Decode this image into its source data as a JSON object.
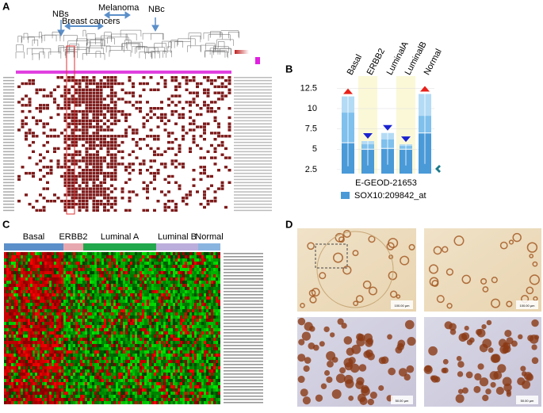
{
  "panels": {
    "a": "A",
    "b": "B",
    "c": "C",
    "d": "D"
  },
  "panel_a": {
    "annotations": [
      "NBs",
      "Breast cancers",
      "Melanoma",
      "NBc"
    ]
  },
  "chart_data": {
    "type": "box",
    "categories": [
      "Basal",
      "ERBB2",
      "LuminalA",
      "LuminalB",
      "Normal"
    ],
    "series": [
      {
        "name": "SOX10:209842_at",
        "color": "#4a9ad8",
        "low": [
          2.9,
          3.0,
          3.1,
          3.0,
          3.2
        ],
        "q1": [
          4.2,
          4.6,
          4.7,
          4.6,
          4.8
        ],
        "median": [
          5.8,
          5.0,
          5.1,
          5.0,
          7.0
        ],
        "q3": [
          9.5,
          5.6,
          6.2,
          5.4,
          9.1
        ],
        "high": [
          11.5,
          6.0,
          7.0,
          5.6,
          11.8
        ]
      }
    ],
    "markers": [
      "up",
      "down",
      "down",
      "down",
      "up"
    ],
    "marker_colors": [
      "#e8201a",
      "#1a22d0",
      "#1a22d0",
      "#1a22d0",
      "#e8201a"
    ],
    "band_colors": [
      null,
      "#fbf8d8",
      null,
      "#fbf8d8",
      null
    ],
    "xlabel": "E-GEOD-21653",
    "ylim": [
      2.0,
      14.0
    ],
    "yticks": [
      2.5,
      5.0,
      7.5,
      10.0,
      12.5
    ],
    "legend": "bottom"
  },
  "panel_c": {
    "groups": [
      {
        "name": "Basal",
        "color": "#5b8fc9"
      },
      {
        "name": "ERBB2",
        "color": "#e8a8b0"
      },
      {
        "name": "Luminal A",
        "color": "#22a84c"
      },
      {
        "name": "Luminal B",
        "color": "#bcaedc"
      },
      {
        "name": "Normal",
        "color": "#8ab4e0"
      }
    ]
  },
  "panel_d": {
    "scale_labels": [
      "100.00 µm",
      "100.00 µm",
      "50.00 µm",
      "50.00 µm"
    ]
  }
}
